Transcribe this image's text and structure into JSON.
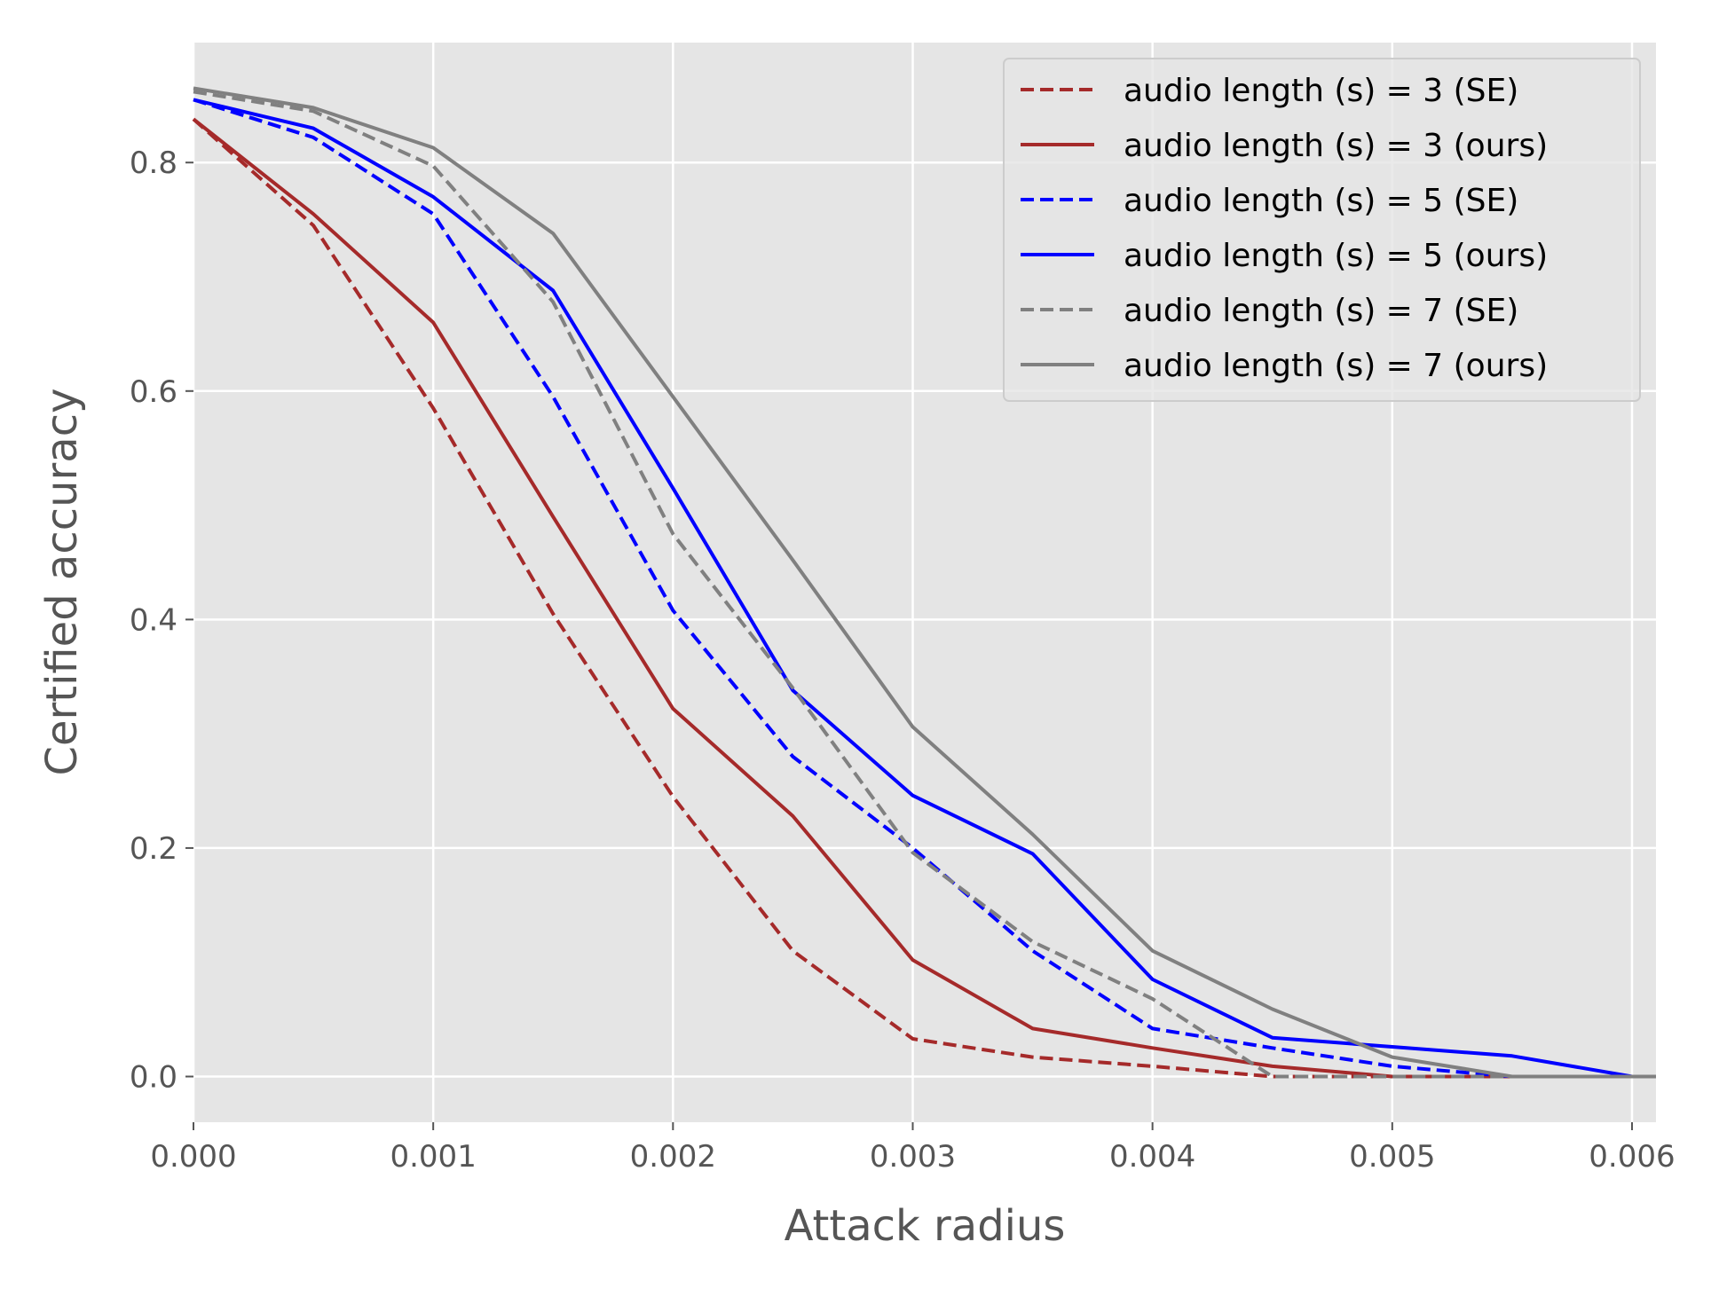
{
  "chart_data": {
    "type": "line",
    "title": "",
    "xlabel": "Attack radius",
    "ylabel": "Certified accuracy",
    "xlim": [
      0,
      0.0061
    ],
    "ylim": [
      -0.04,
      0.905
    ],
    "grid": true,
    "legend_position": "top-right",
    "x_ticks": [
      {
        "value": 0.0,
        "label": "0.000"
      },
      {
        "value": 0.001,
        "label": "0.001"
      },
      {
        "value": 0.002,
        "label": "0.002"
      },
      {
        "value": 0.003,
        "label": "0.003"
      },
      {
        "value": 0.004,
        "label": "0.004"
      },
      {
        "value": 0.005,
        "label": "0.005"
      },
      {
        "value": 0.006,
        "label": "0.006"
      }
    ],
    "y_ticks": [
      {
        "value": 0.0,
        "label": "0.0"
      },
      {
        "value": 0.2,
        "label": "0.2"
      },
      {
        "value": 0.4,
        "label": "0.4"
      },
      {
        "value": 0.6,
        "label": "0.6"
      },
      {
        "value": 0.8,
        "label": "0.8"
      }
    ],
    "series": [
      {
        "name": "audio length (s) = 3 (SE)",
        "color": "#a52a2a",
        "dashed": true,
        "x": [
          0,
          0.0005,
          0.001,
          0.0015,
          0.002,
          0.0025,
          0.003,
          0.0035,
          0.004,
          0.0045,
          0.005,
          0.0055
        ],
        "y": [
          0.838,
          0.745,
          0.585,
          0.405,
          0.245,
          0.11,
          0.033,
          0.017,
          0.009,
          0.0,
          0.0,
          0.0
        ]
      },
      {
        "name": "audio length (s) = 3 (ours)",
        "color": "#a52a2a",
        "dashed": false,
        "x": [
          0,
          0.0005,
          0.001,
          0.0015,
          0.002,
          0.0025,
          0.003,
          0.0035,
          0.004,
          0.0045,
          0.005,
          0.0055
        ],
        "y": [
          0.838,
          0.755,
          0.66,
          0.49,
          0.322,
          0.228,
          0.102,
          0.042,
          0.025,
          0.009,
          0.0,
          0.0
        ]
      },
      {
        "name": "audio length (s) = 5 (SE)",
        "color": "#0000ff",
        "dashed": true,
        "x": [
          0,
          0.0005,
          0.001,
          0.0015,
          0.002,
          0.0025,
          0.003,
          0.0035,
          0.004,
          0.0045,
          0.005,
          0.0055
        ],
        "y": [
          0.855,
          0.822,
          0.755,
          0.595,
          0.408,
          0.28,
          0.2,
          0.11,
          0.042,
          0.025,
          0.009,
          0.0
        ]
      },
      {
        "name": "audio length (s) = 5 (ours)",
        "color": "#0000ff",
        "dashed": false,
        "x": [
          0,
          0.0005,
          0.001,
          0.0015,
          0.002,
          0.0025,
          0.003,
          0.0035,
          0.004,
          0.0045,
          0.005,
          0.0055,
          0.006,
          0.0061
        ],
        "y": [
          0.855,
          0.83,
          0.77,
          0.688,
          0.515,
          0.338,
          0.246,
          0.195,
          0.085,
          0.034,
          0.026,
          0.018,
          0.0,
          0.0
        ]
      },
      {
        "name": "audio length (s) = 7 (SE)",
        "color": "#808080",
        "dashed": true,
        "x": [
          0,
          0.0005,
          0.001,
          0.0015,
          0.002,
          0.0025,
          0.003,
          0.0035,
          0.004,
          0.0045,
          0.005,
          0.0055
        ],
        "y": [
          0.862,
          0.845,
          0.797,
          0.678,
          0.475,
          0.34,
          0.196,
          0.118,
          0.068,
          0.0,
          0.0,
          0.0
        ]
      },
      {
        "name": "audio length (s) = 7 (ours)",
        "color": "#808080",
        "dashed": false,
        "x": [
          0,
          0.0005,
          0.001,
          0.0015,
          0.002,
          0.0025,
          0.003,
          0.0035,
          0.004,
          0.0045,
          0.005,
          0.0055,
          0.006,
          0.0061
        ],
        "y": [
          0.865,
          0.848,
          0.813,
          0.738,
          0.595,
          0.452,
          0.306,
          0.212,
          0.11,
          0.059,
          0.017,
          0.0,
          0.0,
          0.0
        ]
      }
    ]
  }
}
